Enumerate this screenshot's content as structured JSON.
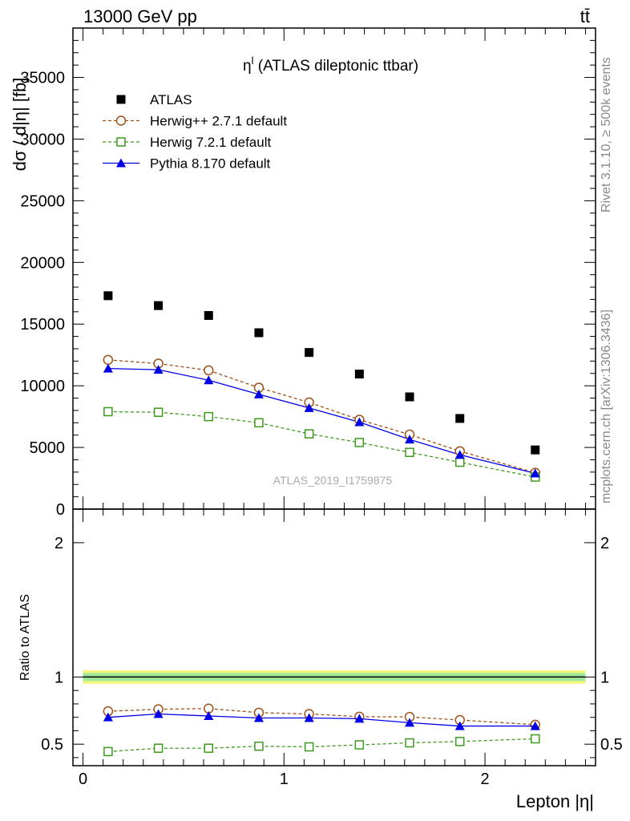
{
  "header": {
    "left": "13000 GeV pp",
    "right": "tt̄"
  },
  "side_labels": {
    "rivet": "Rivet 3.1.10, ≥ 500k events",
    "mcplots": "mcplots.cern.ch [arXiv:1306.3436]"
  },
  "chart_data": [
    {
      "type": "scatter",
      "title": "η^l (ATLAS dileptonic ttbar)",
      "title_main": "η",
      "title_sup": "l",
      "title_rest": " (ATLAS dileptonic ttbar)",
      "ylabel": "dσ / d|η| [fb]",
      "watermark": "ATLAS_2019_I1759875",
      "xlim": [
        -0.05,
        2.55
      ],
      "ylim": [
        0,
        39000
      ],
      "yticks": [
        0,
        5000,
        10000,
        15000,
        20000,
        25000,
        30000,
        35000
      ],
      "yticklabels": [
        "0",
        "5000",
        "10000",
        "15000",
        "20000",
        "25000",
        "30000",
        "35000"
      ],
      "legend_position": "top-left",
      "x": [
        0.125,
        0.375,
        0.625,
        0.875,
        1.125,
        1.375,
        1.625,
        1.875,
        2.25
      ],
      "series": [
        {
          "name": "ATLAS",
          "style": "data",
          "color": "#000000",
          "values": [
            17300,
            16500,
            15700,
            14300,
            12700,
            10950,
            9100,
            7350,
            4800
          ]
        },
        {
          "name": "Herwig++ 2.7.1 default",
          "style": "open-circle-dashed",
          "color": "#a0521a",
          "values": [
            12100,
            11800,
            11250,
            9850,
            8650,
            7250,
            6050,
            4700,
            2950
          ]
        },
        {
          "name": "Herwig 7.2.1 default",
          "style": "open-square-dashed",
          "color": "#3d9a1e",
          "values": [
            7900,
            7850,
            7500,
            7000,
            6100,
            5400,
            4600,
            3800,
            2600
          ]
        },
        {
          "name": "Pythia 8.170 default",
          "style": "triangle-solid",
          "color": "#0000e6",
          "values": [
            11400,
            11300,
            10450,
            9300,
            8200,
            7050,
            5650,
            4400,
            2900
          ]
        }
      ]
    },
    {
      "type": "line",
      "xlabel": "Lepton |η|",
      "ylabel": "Ratio to ATLAS",
      "xlim": [
        -0.05,
        2.55
      ],
      "ylim": [
        0.34,
        2.25
      ],
      "xticks": [
        0,
        1,
        2
      ],
      "xticklabels": [
        "0",
        "1",
        "2"
      ],
      "yticks": [
        0.5,
        1,
        2
      ],
      "yticklabels": [
        "0.5",
        "1",
        "2"
      ],
      "x": [
        0.125,
        0.375,
        0.625,
        0.875,
        1.125,
        1.375,
        1.625,
        1.875,
        2.25
      ],
      "band": {
        "inner": [
          0.97,
          1.03
        ],
        "outer": [
          0.95,
          1.05
        ]
      },
      "series": [
        {
          "name": "Herwig++ 2.7.1 default",
          "color": "#a0521a",
          "values": [
            0.745,
            0.76,
            0.765,
            0.735,
            0.725,
            0.705,
            0.703,
            0.68,
            0.645
          ]
        },
        {
          "name": "Herwig 7.2.1 default",
          "color": "#3d9a1e",
          "values": [
            0.445,
            0.47,
            0.47,
            0.485,
            0.48,
            0.495,
            0.51,
            0.52,
            0.54
          ]
        },
        {
          "name": "Pythia 8.170 default",
          "color": "#0000e6",
          "values": [
            0.7,
            0.725,
            0.71,
            0.695,
            0.695,
            0.69,
            0.66,
            0.635,
            0.635
          ]
        }
      ]
    }
  ]
}
